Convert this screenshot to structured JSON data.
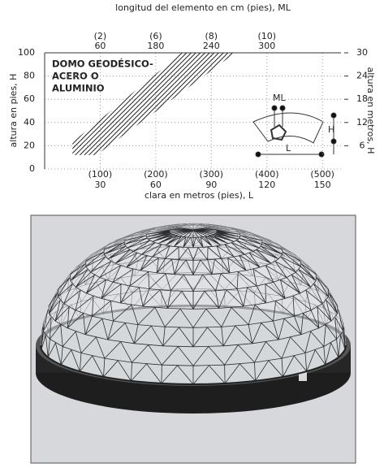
{
  "chart_data": {
    "type": "area",
    "x_label": "clara en metros (pies), L",
    "x2_label": "longitud del elemento en cm (pies), ML",
    "y_label": "altura en pies, H",
    "y2_label": "altura en metros, H",
    "xlim": [
      0,
      160
    ],
    "xticks": [
      30,
      60,
      90,
      120,
      150
    ],
    "xtick_feet": [
      "(100)",
      "(200)",
      "(300)",
      "(400)",
      "(500)"
    ],
    "x2_categories": [
      "60",
      "180",
      "240",
      "300"
    ],
    "x2_feet": [
      "(2)",
      "(6)",
      "(8)",
      "(10)"
    ],
    "ylim": [
      0,
      100
    ],
    "yticks": [
      0,
      20,
      40,
      60,
      80,
      100
    ],
    "y2lim": [
      0,
      30
    ],
    "y2ticks": [
      6,
      12,
      18,
      24,
      30
    ],
    "grid": true,
    "band": {
      "x": [
        15,
        15,
        74,
        103,
        28
      ],
      "y": [
        12,
        23,
        100,
        100,
        12
      ],
      "color": "#222"
    },
    "annotation": [
      "DOMO GEODÉSICO-",
      "ACERO O",
      "ALUMINIO"
    ],
    "diagram_labels": [
      "ML",
      "H",
      "L"
    ]
  }
}
